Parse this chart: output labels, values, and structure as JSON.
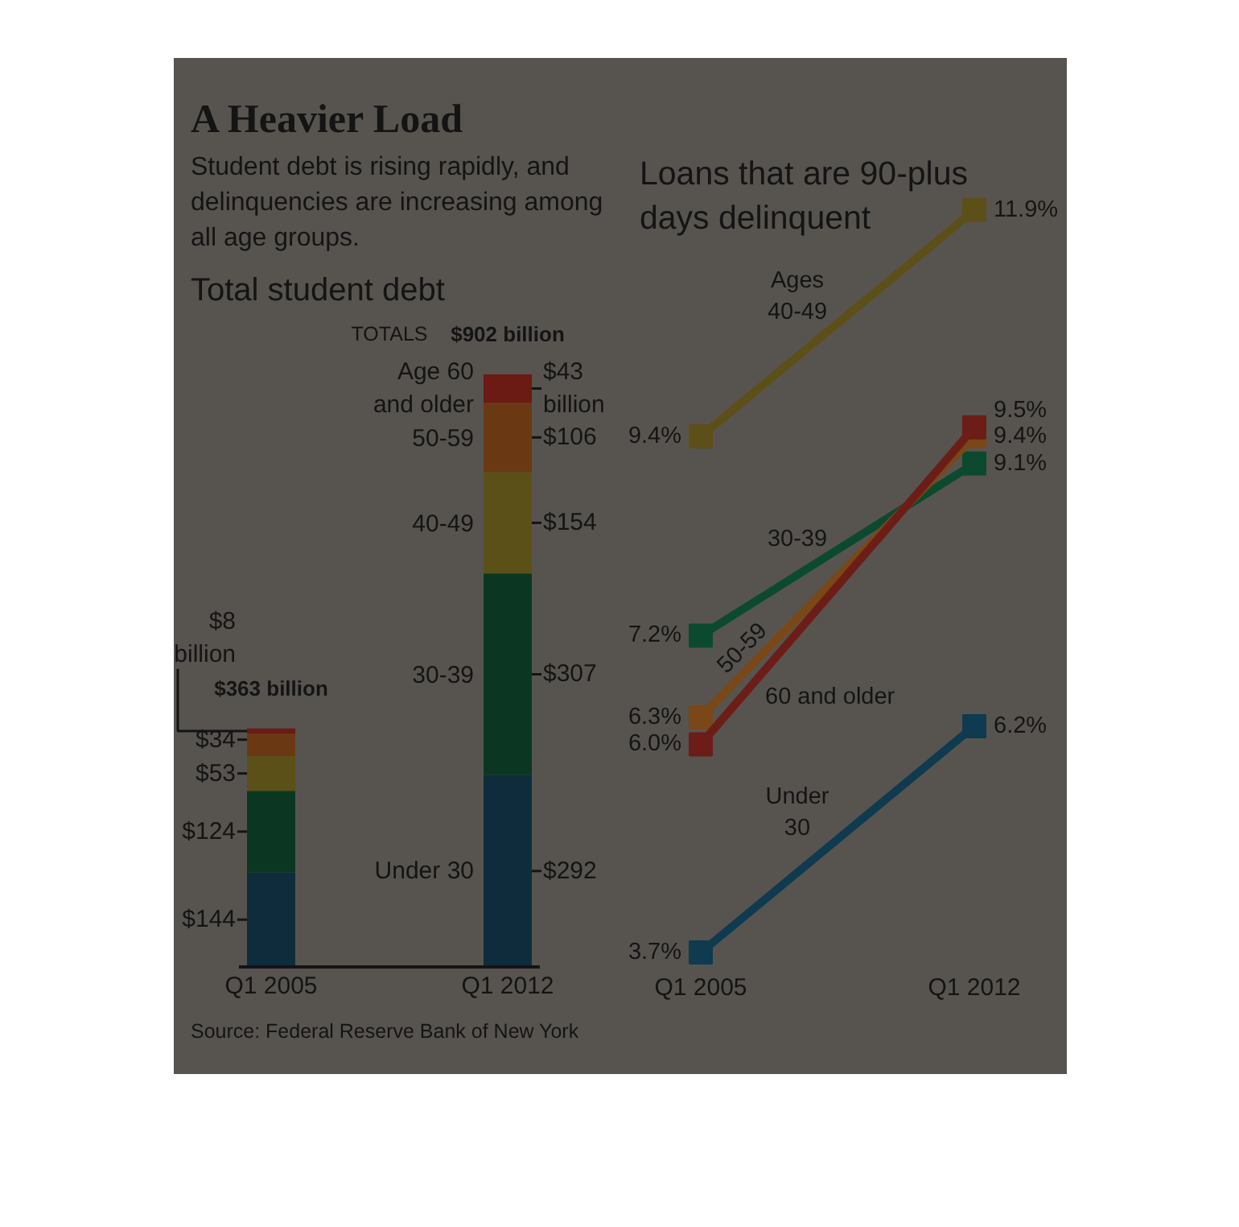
{
  "chart_data": [
    {
      "type": "other",
      "title": "A Heavier Load",
      "subtitle": "Student debt is rising rapidly, and delinquencies are increasing among all age groups."
    },
    {
      "type": "bar",
      "stacked": true,
      "title": "Total student debt",
      "categories": [
        "Q1 2005",
        "Q1 2012"
      ],
      "series": [
        {
          "name": "Under 30",
          "color": "#0e2c3b",
          "values": [
            144,
            292
          ],
          "value_labels": [
            "$144",
            "$292"
          ]
        },
        {
          "name": "30-39",
          "color": "#0b3722",
          "values": [
            124,
            307
          ],
          "value_labels": [
            "$124",
            "$307"
          ]
        },
        {
          "name": "40-49",
          "color": "#5b5018",
          "values": [
            53,
            154
          ],
          "value_labels": [
            "$53",
            "$154"
          ]
        },
        {
          "name": "50-59",
          "color": "#6a3914",
          "values": [
            34,
            106
          ],
          "value_labels": [
            "$34",
            "$106"
          ]
        },
        {
          "name": "Age 60 and older",
          "color": "#6b1a14",
          "values": [
            8,
            43
          ],
          "value_labels": [
            "$8 billion",
            "$43 billion"
          ]
        }
      ],
      "totals": [
        "$363 billion",
        "$902 billion"
      ],
      "annotations": [
        "TOTALS",
        "Source: Federal Reserve Bank of New York"
      ]
    },
    {
      "type": "line",
      "title": "Loans that are 90-plus days delinquent",
      "categories": [
        "Q1 2005",
        "Q1 2012"
      ],
      "marker": "square",
      "series": [
        {
          "name": "Under 30",
          "color": "#0f3a50",
          "values": [
            3.7,
            6.2
          ],
          "value_labels": [
            "3.7%",
            "6.2%"
          ]
        },
        {
          "name": "30-39",
          "color": "#0c4a30",
          "values": [
            7.2,
            9.1
          ],
          "value_labels": [
            "7.2%",
            "9.1%"
          ]
        },
        {
          "name": "Ages 40-49",
          "color": "#5d4f18",
          "values": [
            9.4,
            11.9
          ],
          "value_labels": [
            "9.4%",
            "11.9%"
          ]
        },
        {
          "name": "50-59",
          "color": "#7a4716",
          "values": [
            6.3,
            9.4
          ],
          "value_labels": [
            "6.3%",
            "9.4%"
          ]
        },
        {
          "name": "60 and older",
          "color": "#6d1d17",
          "values": [
            6.0,
            9.5
          ],
          "value_labels": [
            "6.0%",
            "9.5%"
          ]
        }
      ]
    }
  ]
}
